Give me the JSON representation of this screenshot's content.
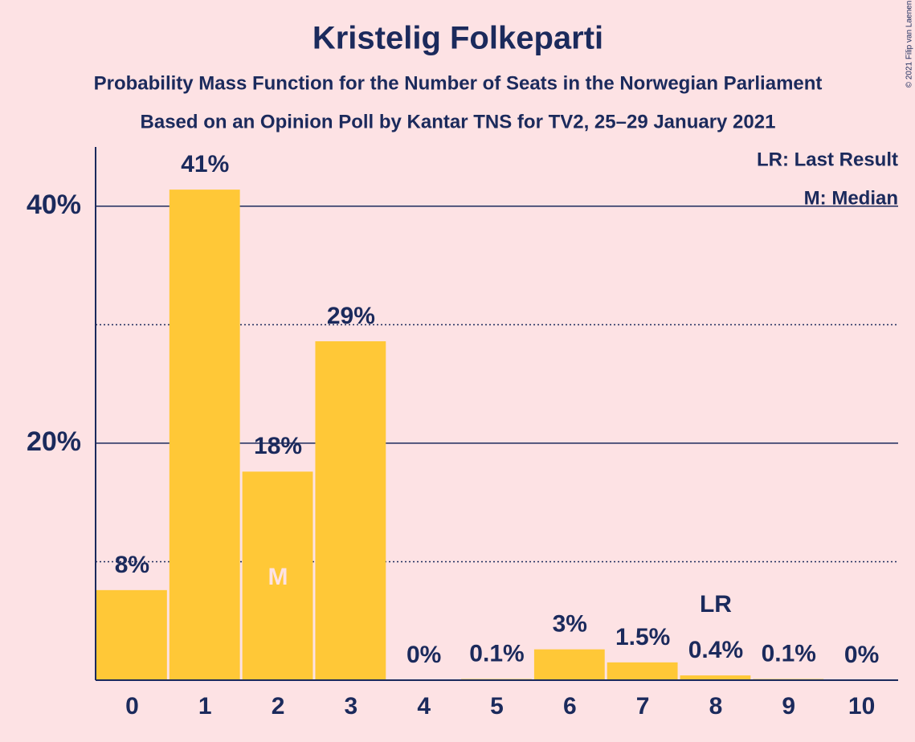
{
  "chart_data": {
    "type": "bar",
    "title": "Kristelig Folkeparti",
    "subtitle": [
      "Probability Mass Function for the Number of Seats in the Norwegian Parliament",
      "Based on an Opinion Poll by Kantar TNS for TV2, 25–29 January 2021"
    ],
    "categories": [
      "0",
      "1",
      "2",
      "3",
      "4",
      "5",
      "6",
      "7",
      "8",
      "9",
      "10"
    ],
    "values": [
      7.6,
      41.4,
      17.6,
      28.6,
      0,
      0.1,
      2.6,
      1.5,
      0.4,
      0.1,
      0
    ],
    "value_labels": [
      "8%",
      "41%",
      "18%",
      "29%",
      "0%",
      "0.1%",
      "3%",
      "1.5%",
      "0.4%",
      "0.1%",
      "0%"
    ],
    "color": "#ffc837",
    "ylim": [
      0,
      45
    ],
    "yticks": [
      {
        "value": 20,
        "label": "20%"
      },
      {
        "value": 40,
        "label": "40%"
      }
    ],
    "minor_yticks": [
      10,
      30
    ],
    "grid": true,
    "median_index": 2,
    "median_label": "M",
    "last_result_index": 8,
    "last_result_label": "LR",
    "legend": [
      "LR: Last Result",
      "M: Median"
    ],
    "copyright": "© 2021 Filip van Laenen"
  }
}
